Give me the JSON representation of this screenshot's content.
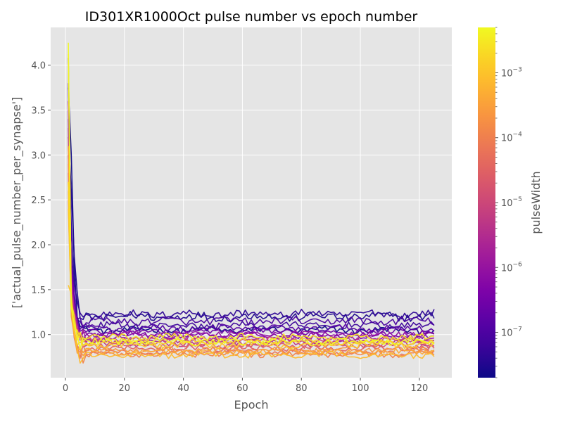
{
  "chart_data": {
    "type": "line",
    "title": "ID301XR1000Oct pulse number vs epoch number",
    "xlabel": "Epoch",
    "ylabel": "['actual_pulse_number_per_synapse']",
    "xlim": [
      -5,
      131
    ],
    "ylim": [
      0.52,
      4.42
    ],
    "x_ticks": [
      0,
      20,
      40,
      60,
      80,
      100,
      120
    ],
    "y_ticks": [
      1.0,
      1.5,
      2.0,
      2.5,
      3.0,
      3.5,
      4.0
    ],
    "x_tick_labels": [
      "0",
      "20",
      "40",
      "60",
      "80",
      "100",
      "120"
    ],
    "y_tick_labels": [
      "1.0",
      "1.5",
      "2.0",
      "2.5",
      "3.0",
      "3.5",
      "4.0"
    ],
    "epochs": [
      1,
      125
    ],
    "grid": true,
    "background": "#e5e5e5",
    "colormap": "plasma",
    "colorbar": {
      "label": "pulseWidth",
      "scale": "log",
      "range": [
        2e-08,
        0.005
      ],
      "major_ticks": [
        {
          "value": 1e-07,
          "base": "10",
          "exp": "−7"
        },
        {
          "value": 1e-06,
          "base": "10",
          "exp": "−6"
        },
        {
          "value": 1e-05,
          "base": "10",
          "exp": "−5"
        },
        {
          "value": 0.0001,
          "base": "10",
          "exp": "−4"
        },
        {
          "value": 0.001,
          "base": "10",
          "exp": "−3"
        }
      ]
    },
    "series": [
      {
        "color_value": 0.0,
        "start": 3.75,
        "peak": 3.0,
        "plateau": 1.05,
        "noise": 0.035
      },
      {
        "color_value": 0.03,
        "start": 3.2,
        "peak": 2.6,
        "plateau": 1.2,
        "noise": 0.045
      },
      {
        "color_value": 0.06,
        "start": 3.6,
        "peak": 2.2,
        "plateau": 1.23,
        "noise": 0.04
      },
      {
        "color_value": 0.09,
        "start": 3.0,
        "peak": 1.9,
        "plateau": 1.1,
        "noise": 0.035
      },
      {
        "color_value": 0.12,
        "start": 3.8,
        "peak": 1.7,
        "plateau": 1.15,
        "noise": 0.04
      },
      {
        "color_value": 0.15,
        "start": 4.08,
        "peak": 1.6,
        "plateau": 1.07,
        "noise": 0.035
      },
      {
        "color_value": 0.2,
        "start": 3.4,
        "peak": 1.8,
        "plateau": 1.03,
        "noise": 0.03
      },
      {
        "color_value": 0.25,
        "start": 3.1,
        "peak": 1.6,
        "plateau": 0.99,
        "noise": 0.03
      },
      {
        "color_value": 0.3,
        "start": 3.5,
        "peak": 1.7,
        "plateau": 1.01,
        "noise": 0.03
      },
      {
        "color_value": 0.35,
        "start": 3.3,
        "peak": 1.5,
        "plateau": 0.96,
        "noise": 0.03
      },
      {
        "color_value": 0.4,
        "start": 3.6,
        "peak": 1.6,
        "plateau": 0.93,
        "noise": 0.03
      },
      {
        "color_value": 0.45,
        "start": 3.2,
        "peak": 1.5,
        "plateau": 0.9,
        "noise": 0.03
      },
      {
        "color_value": 0.5,
        "start": 3.0,
        "peak": 1.4,
        "plateau": 0.94,
        "noise": 0.03
      },
      {
        "color_value": 0.55,
        "start": 2.8,
        "peak": 1.4,
        "plateau": 0.88,
        "noise": 0.03
      },
      {
        "color_value": 0.6,
        "start": 2.7,
        "peak": 1.3,
        "plateau": 0.85,
        "noise": 0.03
      },
      {
        "color_value": 0.65,
        "start": 2.9,
        "peak": 1.4,
        "plateau": 0.8,
        "noise": 0.03
      },
      {
        "color_value": 0.7,
        "start": 2.6,
        "peak": 1.3,
        "plateau": 0.78,
        "noise": 0.03
      },
      {
        "color_value": 0.75,
        "start": 2.5,
        "peak": 1.2,
        "plateau": 0.83,
        "noise": 0.03
      },
      {
        "color_value": 0.8,
        "start": 3.1,
        "peak": 1.4,
        "plateau": 0.81,
        "noise": 0.03
      },
      {
        "color_value": 0.85,
        "start": 2.4,
        "peak": 1.3,
        "plateau": 0.77,
        "noise": 0.03
      },
      {
        "color_value": 0.88,
        "start": 1.55,
        "peak": 1.45,
        "plateau": 0.89,
        "noise": 0.035
      },
      {
        "color_value": 0.92,
        "start": 2.7,
        "peak": 1.3,
        "plateau": 0.92,
        "noise": 0.03
      },
      {
        "color_value": 0.96,
        "start": 4.12,
        "peak": 1.35,
        "plateau": 0.97,
        "noise": 0.035
      },
      {
        "color_value": 1.0,
        "start": 4.25,
        "peak": 1.3,
        "plateau": 0.92,
        "noise": 0.035
      }
    ]
  }
}
